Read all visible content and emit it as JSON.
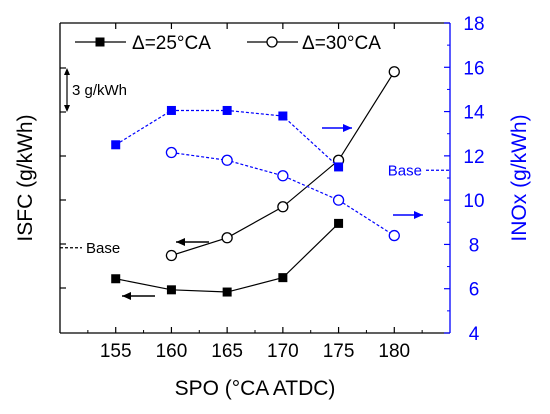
{
  "chart_data": {
    "type": "line",
    "x": [
      155,
      160,
      165,
      170,
      175,
      180
    ],
    "xlabel": "SPO (°CA ATDC)",
    "xlim": [
      150,
      185
    ],
    "x_ticks": [
      "155",
      "160",
      "165",
      "170",
      "175",
      "180"
    ],
    "left_axis": {
      "label": "ISFC (g/kWh)",
      "color": "#000000",
      "tick_labels_shown": false,
      "scale_note": "3 g/kWh",
      "base_label": "Base"
    },
    "right_axis": {
      "label": "INOx (g/kWh)",
      "color": "#0000ff",
      "ylim": [
        4,
        18
      ],
      "ticks": [
        "4",
        "6",
        "8",
        "10",
        "12",
        "14",
        "16",
        "18"
      ],
      "base_label": "Base"
    },
    "legend": {
      "position": "top",
      "items": [
        "Δ=25°CA",
        "Δ=30°CA"
      ]
    },
    "series": [
      {
        "name": "Δ=25°CA",
        "quantity": "ISFC",
        "axis": "left",
        "marker": "filled-square",
        "color": "#000000",
        "x": [
          155,
          160,
          165,
          170,
          175
        ],
        "values": [
          6.45,
          5.95,
          5.85,
          6.5,
          8.95
        ]
      },
      {
        "name": "Δ=30°CA",
        "quantity": "ISFC",
        "axis": "left",
        "marker": "open-circle",
        "color": "#000000",
        "x": [
          160,
          165,
          170,
          175,
          180
        ],
        "values": [
          7.5,
          8.3,
          9.7,
          11.8,
          15.8
        ]
      },
      {
        "name": "Δ=25°CA",
        "quantity": "INOx",
        "axis": "right",
        "marker": "filled-square",
        "color": "#0000ff",
        "dashed": true,
        "x": [
          155,
          160,
          165,
          170,
          175
        ],
        "values": [
          12.5,
          14.05,
          14.05,
          13.8,
          11.5
        ]
      },
      {
        "name": "Δ=30°CA",
        "quantity": "INOx",
        "axis": "right",
        "marker": "open-circle",
        "color": "#0000ff",
        "dashed": true,
        "x": [
          160,
          165,
          170,
          175,
          180
        ],
        "values": [
          12.15,
          11.8,
          11.1,
          10.0,
          8.4
        ]
      }
    ],
    "reference_lines": [
      {
        "axis": "left",
        "value": 7.85,
        "label": "Base",
        "color": "#000000"
      },
      {
        "axis": "right",
        "value": 11.35,
        "label": "Base",
        "color": "#0000ff"
      }
    ],
    "arrows": [
      {
        "direction": "left",
        "color": "#000000",
        "points_to": "left-axis"
      },
      {
        "direction": "left",
        "color": "#000000",
        "points_to": "left-axis"
      },
      {
        "direction": "right",
        "color": "#0000ff",
        "points_to": "right-axis"
      },
      {
        "direction": "right",
        "color": "#0000ff",
        "points_to": "right-axis"
      }
    ]
  }
}
